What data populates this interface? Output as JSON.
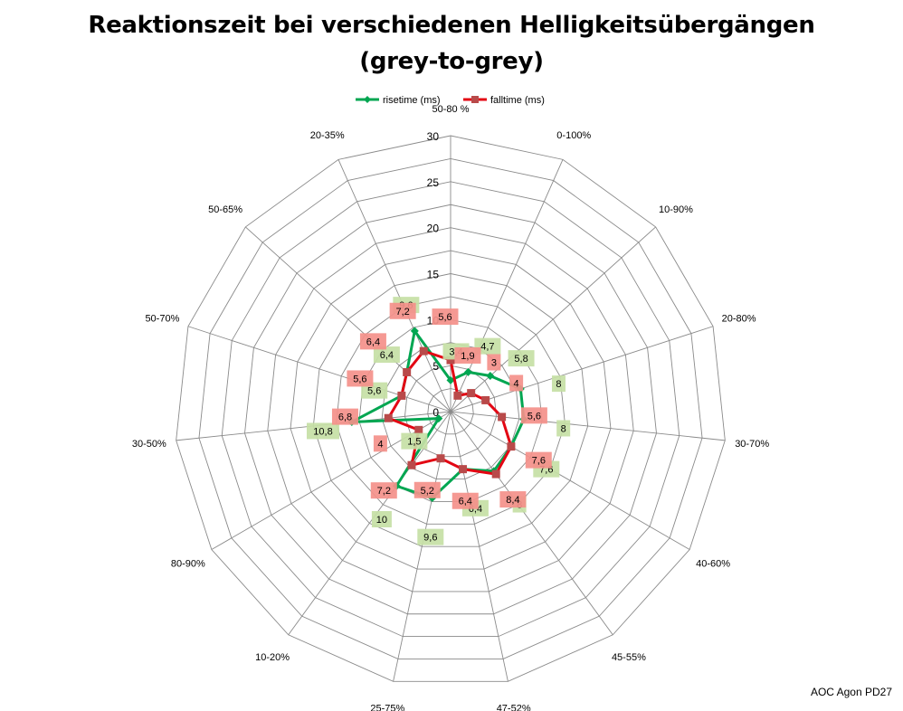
{
  "title": {
    "line1": "Reaktionszeit bei verschiedenen Helligkeitsübergängen",
    "line2": "(grey-to-grey)"
  },
  "footnote": "AOC Agon PD27",
  "chart_data": {
    "type": "radar",
    "title": "Reaktionszeit bei verschiedenen Helligkeitsübergängen (grey-to-grey)",
    "categories": [
      "50-80 %",
      "0-100%",
      "10-90%",
      "20-80%",
      "30-70%",
      "40-60%",
      "45-55%",
      "47-52%",
      "25-75%",
      "10-20%",
      "80-90%",
      "30-50%",
      "50-70%",
      "50-65%",
      "20-35%"
    ],
    "axis": {
      "min": 0,
      "max": 30,
      "step": 5,
      "ticks": [
        "0",
        "5",
        "10",
        "15",
        "20",
        "25",
        "30"
      ]
    },
    "legend_position": "top",
    "series": [
      {
        "name": "risetime (ms)",
        "color": "#00a651",
        "label_bg": "#c5e0a5",
        "values": [
          3.4,
          4.7,
          5.8,
          8,
          8,
          7.6,
          8,
          6.4,
          9.6,
          10,
          1.5,
          10.8,
          5.6,
          6.4,
          9.6
        ],
        "labels": [
          "3,4",
          "4,7",
          "5,8",
          "8",
          "8",
          "7,6",
          "8",
          "6,4",
          "9,6",
          "10",
          "1,5",
          "10,8",
          "5,6",
          "6,4",
          "9,6"
        ]
      },
      {
        "name": "falltime (ms)",
        "color": "#e30613",
        "label_bg": "#f4908a",
        "values": [
          5.6,
          1.9,
          3,
          4,
          5.6,
          7.6,
          8.4,
          6.4,
          5.2,
          7.2,
          4,
          6.8,
          5.6,
          6.4,
          7.2
        ],
        "labels": [
          "5,6",
          "1,9",
          "3",
          "4",
          "5,6",
          "7,6",
          "8,4",
          "6,4",
          "5,2",
          "7,2",
          "4",
          "6,8",
          "5,6",
          "6,4",
          "7,2"
        ]
      }
    ]
  }
}
